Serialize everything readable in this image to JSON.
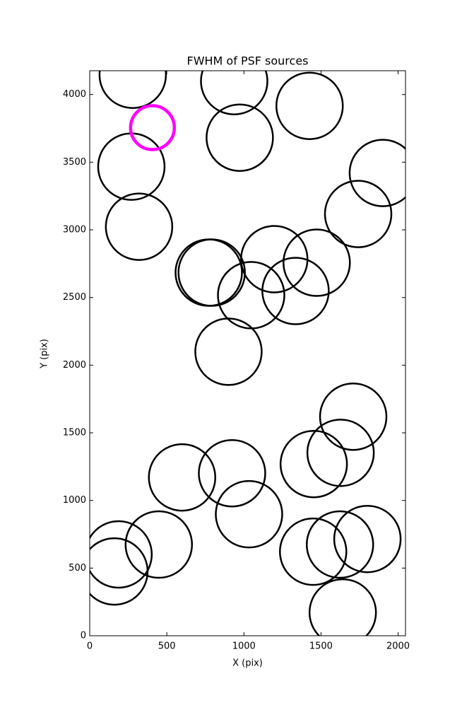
{
  "chart_data": {
    "type": "scatter",
    "title": "FWHM of PSF sources",
    "x_label": "X (pix)",
    "y_label": "Y (pix)",
    "xlim": [
      0,
      2048
    ],
    "ylim": [
      0,
      4176
    ],
    "xticks": [
      0,
      500,
      1000,
      1500,
      2000
    ],
    "yticks": [
      0,
      500,
      1000,
      1500,
      2000,
      2500,
      3000,
      3500,
      4000
    ],
    "series": [
      {
        "color": "#000000",
        "x": [
          279,
          937,
          1426,
          973,
          270,
          1901,
          1741,
          320,
          1197,
          1472,
          772,
          791,
          1047,
          1335,
          900,
          1709,
          1627,
          1453,
          599,
          923,
          1033,
          448,
          187,
          160,
          1449,
          1623,
          1801,
          1641
        ],
        "values": [
          4146,
          4099,
          3916,
          3681,
          3467,
          3420,
          3117,
          3023,
          2783,
          2757,
          2684,
          2684,
          2517,
          2548,
          2099,
          1619,
          1352,
          1269,
          1170,
          1201,
          898,
          674,
          601,
          475,
          621,
          674,
          715,
          172
        ]
      },
      {
        "color": "#ff00ff",
        "x": [
          407
        ],
        "values": [
          3755
        ]
      }
    ]
  }
}
